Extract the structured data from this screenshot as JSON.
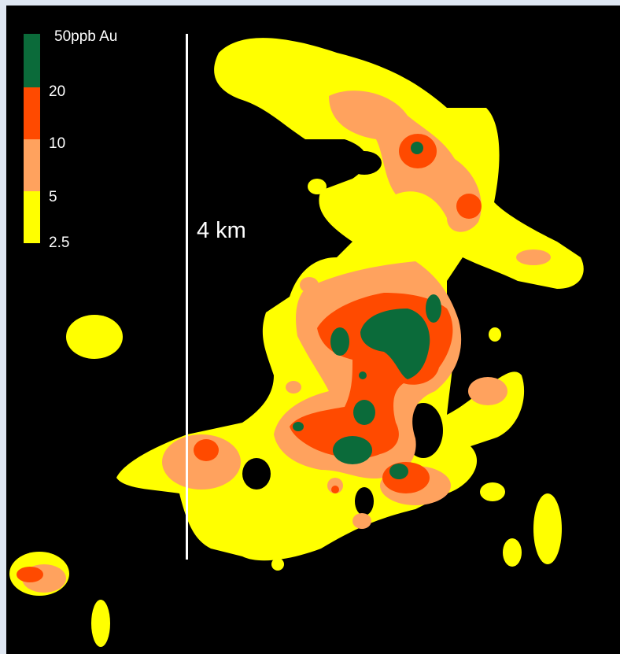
{
  "legend": {
    "title": "50ppb Au",
    "levels": [
      {
        "label": "20",
        "color": "#0b6b3a"
      },
      {
        "label": "10",
        "color": "#ff4a00"
      },
      {
        "label": "5",
        "color": "#ffa25e"
      },
      {
        "label": "2.5",
        "color": "#ffff00"
      }
    ]
  },
  "scale": {
    "label": "4 km"
  },
  "colors": {
    "background": "#000000",
    "frame": "#dfe7f2"
  }
}
